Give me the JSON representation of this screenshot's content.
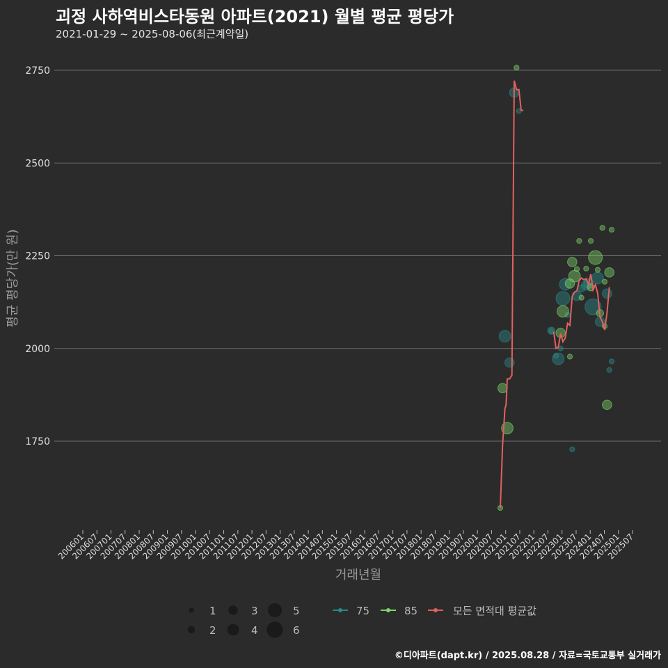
{
  "chart_data": {
    "type": "scatter+line",
    "title": "괴정 사하역비스타동원 아파트(2021) 월별 평균 평당가",
    "subtitle": "2021-01-29 ~ 2025-08-06(최근계약일)",
    "xlabel": "거래년월",
    "ylabel": "평균 평당가(만 원)",
    "ylim": [
      1560,
      2800
    ],
    "yticks": [
      1750,
      2000,
      2250,
      2500,
      2750
    ],
    "xticks": [
      "200601",
      "200607",
      "200701",
      "200707",
      "200801",
      "200807",
      "200901",
      "200907",
      "201001",
      "201007",
      "201101",
      "201107",
      "201201",
      "201207",
      "201301",
      "201307",
      "201401",
      "201407",
      "201501",
      "201507",
      "201601",
      "201607",
      "201701",
      "201707",
      "201801",
      "201807",
      "201901",
      "201907",
      "202001",
      "202007",
      "202101",
      "202107",
      "202201",
      "202207",
      "202301",
      "202307",
      "202401",
      "202407",
      "202501",
      "202507"
    ],
    "x_range_months": [
      0,
      237
    ],
    "size_legend": [
      1,
      2,
      3,
      4,
      5,
      6
    ],
    "series": [
      {
        "name": "75",
        "color": "#2a8a8a",
        "points": [
          [
            182,
            2033,
            4
          ],
          [
            184,
            1962,
            3
          ],
          [
            186,
            2690,
            3
          ],
          [
            188,
            2640,
            1
          ],
          [
            202,
            2048,
            2
          ],
          [
            204,
            1980,
            1
          ],
          [
            205,
            1972,
            4
          ],
          [
            206,
            2000,
            1
          ],
          [
            207,
            2135,
            5
          ],
          [
            208,
            2173,
            4
          ],
          [
            209,
            2090,
            1
          ],
          [
            211,
            1728,
            1
          ],
          [
            213,
            2142,
            3
          ],
          [
            215,
            2162,
            2
          ],
          [
            217,
            2170,
            3
          ],
          [
            218,
            2175,
            3
          ],
          [
            220,
            2112,
            6
          ],
          [
            222,
            2190,
            4
          ],
          [
            223,
            2072,
            3
          ],
          [
            226,
            2148,
            3
          ],
          [
            227,
            1942,
            1
          ],
          [
            228,
            1965,
            1
          ],
          [
            202,
            2047,
            1
          ]
        ]
      },
      {
        "name": "85",
        "color": "#7fd66a",
        "points": [
          [
            180,
            1570,
            1
          ],
          [
            181,
            1893,
            3
          ],
          [
            183,
            1785,
            4
          ],
          [
            187,
            2757,
            1
          ],
          [
            206,
            2042,
            3
          ],
          [
            207,
            2100,
            4
          ],
          [
            210,
            1978,
            1
          ],
          [
            210,
            2175,
            3
          ],
          [
            211,
            2233,
            3
          ],
          [
            212,
            2195,
            4
          ],
          [
            213,
            2214,
            1
          ],
          [
            214,
            2290,
            1
          ],
          [
            215,
            2137,
            1
          ],
          [
            217,
            2215,
            1
          ],
          [
            219,
            2290,
            1
          ],
          [
            219,
            2165,
            2
          ],
          [
            221,
            2245,
            5
          ],
          [
            222,
            2212,
            1
          ],
          [
            223,
            2095,
            2
          ],
          [
            224,
            2325,
            1
          ],
          [
            225,
            2060,
            1
          ],
          [
            225,
            2180,
            1
          ],
          [
            226,
            1848,
            3
          ],
          [
            227,
            2205,
            3
          ],
          [
            228,
            2320,
            1
          ]
        ]
      }
    ],
    "avg_line": {
      "name": "모든 면적대 평균값",
      "color": "#e0625f",
      "points": [
        [
          180,
          1570
        ],
        [
          181,
          1740
        ],
        [
          182,
          1838
        ],
        [
          182.5,
          1848
        ],
        [
          183,
          1918
        ],
        [
          184,
          1918
        ],
        [
          185,
          1928
        ],
        [
          186,
          2722
        ],
        [
          187,
          2698
        ],
        [
          188,
          2698
        ],
        [
          189,
          2642
        ],
        [
          190,
          2642
        ],
        [
          203,
          2045
        ],
        [
          204,
          2000
        ],
        [
          205,
          2003
        ],
        [
          206,
          2040
        ],
        [
          207,
          2018
        ],
        [
          208,
          2028
        ],
        [
          209,
          2068
        ],
        [
          210,
          2062
        ],
        [
          211,
          2140
        ],
        [
          212,
          2152
        ],
        [
          213,
          2155
        ],
        [
          214,
          2183
        ],
        [
          215,
          2190
        ],
        [
          216,
          2185
        ],
        [
          217,
          2188
        ],
        [
          218,
          2172
        ],
        [
          219,
          2200
        ],
        [
          220,
          2158
        ],
        [
          221,
          2172
        ],
        [
          222,
          2148
        ],
        [
          223,
          2085
        ],
        [
          224,
          2072
        ],
        [
          225,
          2050
        ],
        [
          226,
          2095
        ],
        [
          227,
          2165
        ]
      ]
    },
    "legend_labels": [
      "75",
      "85",
      "모든 면적대 평균값"
    ],
    "caption": "©디아파트(dapt.kr) / 2025.08.28 / 자료=국토교통부 실거래가"
  }
}
